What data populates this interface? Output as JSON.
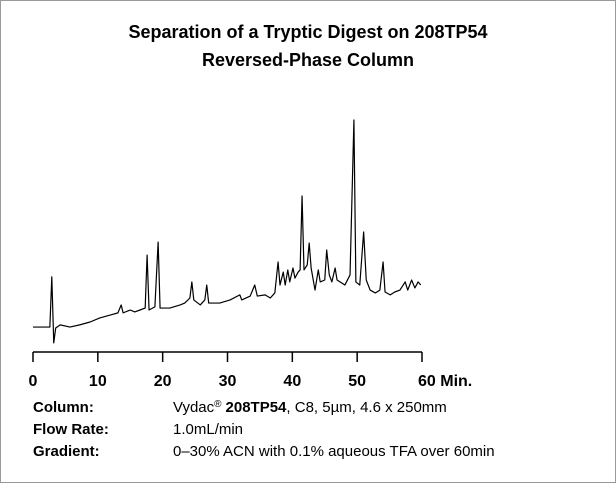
{
  "chart_data": {
    "type": "line",
    "title": [
      "Separation of a Tryptic Digest on 208TP54",
      "Reversed-Phase Column"
    ],
    "x": [
      0,
      2.6,
      2.9,
      3.2,
      3.5,
      4.2,
      5.7,
      7.2,
      8.8,
      10.3,
      11.9,
      13.1,
      13.6,
      13.9,
      15.0,
      15.7,
      16.5,
      17.3,
      17.6,
      17.9,
      18.8,
      19.3,
      19.6,
      21.1,
      22.7,
      23.4,
      24.2,
      24.5,
      24.8,
      25.8,
      26.5,
      26.8,
      27.1,
      28.8,
      30.4,
      31.9,
      32.2,
      33.5,
      34.2,
      34.6,
      35.8,
      36.6,
      37.3,
      37.8,
      38.1,
      38.6,
      38.9,
      39.3,
      39.6,
      40.1,
      40.4,
      40.9,
      41.2,
      41.5,
      41.8,
      42.3,
      42.6,
      42.9,
      43.5,
      44.0,
      44.3,
      45.0,
      45.3,
      45.7,
      46.1,
      46.6,
      46.9,
      48.1,
      48.9,
      49.5,
      49.8,
      50.4,
      51.0,
      51.4,
      52.0,
      52.8,
      53.5,
      54.0,
      54.3,
      55.1,
      55.8,
      56.6,
      57.4,
      57.8,
      58.4,
      58.9,
      59.4,
      59.8
    ],
    "values": [
      10.4,
      10.4,
      31.3,
      3.8,
      10.0,
      11.3,
      10.4,
      11.3,
      12.5,
      14.2,
      15.4,
      16.3,
      19.6,
      16.3,
      17.5,
      16.7,
      17.5,
      18.3,
      40.4,
      17.5,
      18.8,
      45.8,
      18.3,
      18.3,
      19.6,
      20.4,
      22.5,
      29.2,
      21.7,
      19.6,
      21.7,
      27.9,
      20.4,
      20.4,
      21.7,
      23.8,
      21.7,
      23.3,
      27.9,
      23.3,
      23.8,
      22.5,
      24.6,
      37.5,
      27.9,
      33.3,
      27.9,
      34.2,
      29.2,
      35.0,
      30.8,
      33.3,
      34.2,
      65.0,
      34.2,
      36.3,
      45.4,
      35.0,
      25.8,
      34.2,
      29.2,
      30.0,
      42.5,
      32.1,
      29.2,
      35.0,
      30.0,
      27.9,
      32.1,
      96.7,
      29.2,
      27.9,
      50.0,
      30.0,
      25.8,
      24.6,
      25.8,
      37.5,
      25.0,
      23.8,
      25.0,
      25.8,
      29.2,
      25.8,
      30.0,
      26.7,
      29.2,
      27.9
    ],
    "color": "#000000",
    "xlim": [
      0,
      60
    ],
    "xticks": [
      0,
      10,
      20,
      30,
      40,
      50,
      {
        "value": 60,
        "label": "60 Min."
      }
    ],
    "ylim": [
      0,
      100
    ]
  },
  "details": [
    {
      "label": "Column:",
      "parts": [
        "Vydac",
        "®",
        "208TP54",
        ", C8, 5µm, 4.6 x 250mm"
      ]
    },
    {
      "label": "Flow Rate:",
      "parts": [
        "1.0mL/min"
      ]
    },
    {
      "label": "Gradient:",
      "parts": [
        "0–30% ACN with 0.1% aqueous TFA over 60min"
      ]
    }
  ]
}
